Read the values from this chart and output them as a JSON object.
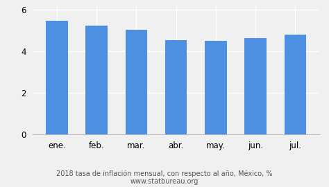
{
  "categories": [
    "ene.",
    "feb.",
    "mar.",
    "abr.",
    "may.",
    "jun.",
    "jul."
  ],
  "values": [
    5.46,
    5.24,
    5.04,
    4.55,
    4.51,
    4.65,
    4.81
  ],
  "bar_color": "#4d8fe0",
  "title_line1": "2018 tasa de inflación mensual, con respecto al año, México, %",
  "title_line2": "www.statbureau.org",
  "ylim": [
    0,
    6.2
  ],
  "yticks": [
    0,
    2,
    4,
    6
  ],
  "background_color": "#f0f0f0",
  "bar_width": 0.55,
  "title_fontsize": 7.0,
  "tick_fontsize": 8.5,
  "grid_color": "#ffffff",
  "axis_color": "#bbbbbb"
}
